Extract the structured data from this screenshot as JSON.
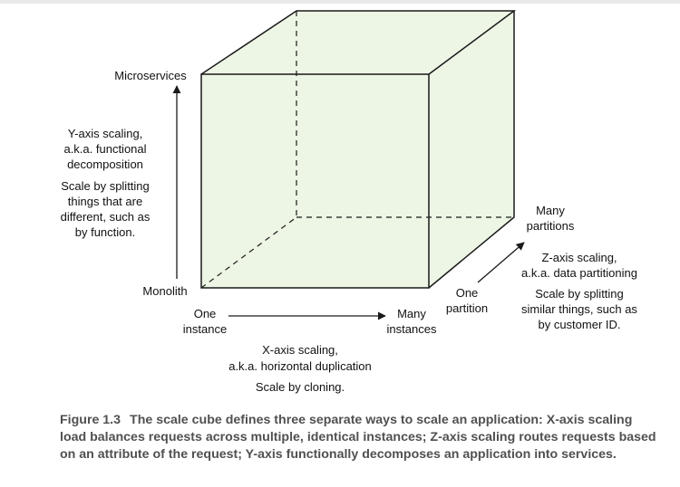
{
  "diagram": {
    "y_axis": {
      "top_label": "Microservices",
      "bottom_label": "Monolith",
      "title_line1": "Y-axis scaling,",
      "title_line2": "a.k.a. functional",
      "title_line3": "decomposition",
      "desc_line1": "Scale by splitting",
      "desc_line2": "things that are",
      "desc_line3": "different, such as",
      "desc_line4": "by function."
    },
    "x_axis": {
      "left_label_line1": "One",
      "left_label_line2": "instance",
      "right_label_line1": "Many",
      "right_label_line2": "instances",
      "title_line1": "X-axis scaling,",
      "title_line2": "a.k.a. horizontal duplication",
      "desc_line1": "Scale by cloning."
    },
    "z_axis": {
      "near_label_line1": "One",
      "near_label_line2": "partition",
      "far_label_line1": "Many",
      "far_label_line2": "partitions",
      "title_line1": "Z-axis scaling,",
      "title_line2": "a.k.a. data partitioning",
      "desc_line1": "Scale by splitting",
      "desc_line2": "similar things, such as",
      "desc_line3": "by customer ID."
    },
    "colors": {
      "cube_fill": "#edf5e4",
      "cube_stroke": "#1a1a1a",
      "caption_text": "#505050"
    }
  },
  "caption": {
    "figure_number": "Figure 1.3",
    "text": "The scale cube defines three separate ways to scale an application: X-axis scaling load balances requests across multiple, identical instances; Z-axis scaling routes requests based on an attribute of the request; Y-axis functionally decomposes an application into services."
  }
}
